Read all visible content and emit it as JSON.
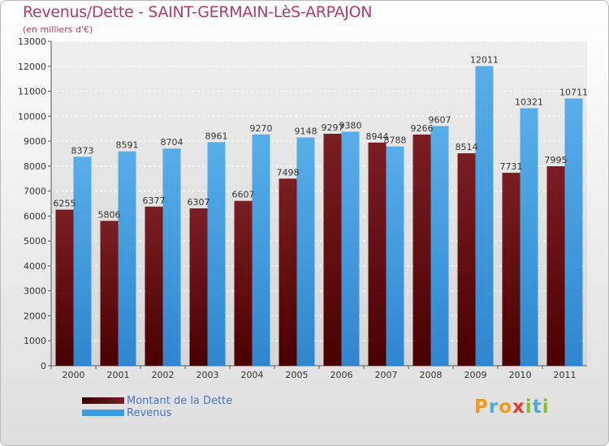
{
  "title": "Revenus/Dette - SAINT-GERMAIN-LèS-ARPAJON",
  "subtitle": "(en milliers d'€)",
  "colors": {
    "title": "#b03a6d",
    "dette": "#7a1e24",
    "revenus": "#3d9be0",
    "legend_text": "#4a74c9"
  },
  "chart_data": {
    "type": "bar",
    "categories": [
      "2000",
      "2001",
      "2002",
      "2003",
      "2004",
      "2005",
      "2006",
      "2007",
      "2008",
      "2009",
      "2010",
      "2011"
    ],
    "series": [
      {
        "name": "Montant de la Dette",
        "values": [
          6255,
          5806,
          6377,
          6307,
          6607,
          7498,
          9297,
          8944,
          9266,
          8514,
          7731,
          7995
        ],
        "labels": [
          "6255",
          "5806",
          "6377",
          "6307",
          "6607",
          "7498",
          "9297",
          "8944",
          "9266",
          "8514",
          "7731",
          "7995"
        ]
      },
      {
        "name": "Revenus",
        "values": [
          8373,
          8591,
          8704,
          8961,
          9270,
          9148,
          9380,
          8788,
          9607,
          12011,
          10321,
          10711
        ],
        "labels": [
          "8373",
          "8591",
          "8704",
          "8961",
          "9270",
          "9148",
          "9380",
          "8788",
          "9607",
          "12011",
          "10321",
          "10711"
        ]
      }
    ],
    "ylim": [
      0,
      13000
    ],
    "yticks": [
      "0",
      "1000",
      "2000",
      "3000",
      "4000",
      "5000",
      "6000",
      "7000",
      "8000",
      "9000",
      "10000",
      "11000",
      "12000",
      "13000"
    ],
    "grid": true,
    "legend_position": "bottom-left"
  },
  "legend": [
    {
      "label": "Montant de la Dette"
    },
    {
      "label": "Revenus"
    }
  ],
  "logo": {
    "letters": [
      "P",
      "r",
      "o",
      "x",
      "i",
      "t",
      "i"
    ],
    "colors": [
      "#f29a1f",
      "#4ea8d8",
      "#f29a1f",
      "#e23b2f",
      "#8bbd3a",
      "#4ea8d8",
      "#8bbd3a"
    ]
  }
}
